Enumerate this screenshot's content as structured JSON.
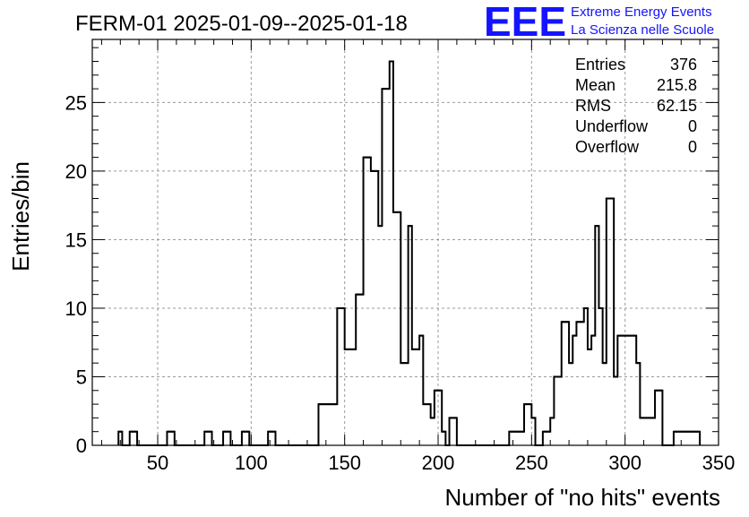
{
  "title": "FERM-01 2025-01-09--2025-01-18",
  "logo": {
    "text": "EEE",
    "color": "#1414ff",
    "line1": "Extreme Energy Events",
    "line2": "La Scienza nelle Scuole"
  },
  "stats": [
    {
      "label": "Entries",
      "value": "376"
    },
    {
      "label": "Mean",
      "value": "215.8"
    },
    {
      "label": "RMS",
      "value": "62.15"
    },
    {
      "label": "Underflow",
      "value": "0"
    },
    {
      "label": "Overflow",
      "value": "0"
    }
  ],
  "chart_data": {
    "type": "histogram",
    "xlabel": "Number of \"no hits\" events",
    "ylabel": "Entries/bin",
    "xlim": [
      15,
      350
    ],
    "ylim": [
      0,
      29.6
    ],
    "bin_width": 4,
    "grid": true,
    "xticks": [
      50,
      100,
      150,
      200,
      250,
      300,
      350
    ],
    "yticks": [
      0,
      5,
      10,
      15,
      20,
      25
    ],
    "bins": [
      {
        "x": 29,
        "y": 1
      },
      {
        "x": 31,
        "y": 0
      },
      {
        "x": 35,
        "y": 1
      },
      {
        "x": 39,
        "y": 0
      },
      {
        "x": 55,
        "y": 1
      },
      {
        "x": 59,
        "y": 0
      },
      {
        "x": 75,
        "y": 1
      },
      {
        "x": 79,
        "y": 0
      },
      {
        "x": 85,
        "y": 1
      },
      {
        "x": 89,
        "y": 0
      },
      {
        "x": 95,
        "y": 1
      },
      {
        "x": 99,
        "y": 0
      },
      {
        "x": 109,
        "y": 1
      },
      {
        "x": 113,
        "y": 0
      },
      {
        "x": 136,
        "y": 3
      },
      {
        "x": 146,
        "y": 10
      },
      {
        "x": 150,
        "y": 7
      },
      {
        "x": 156,
        "y": 11
      },
      {
        "x": 160,
        "y": 21
      },
      {
        "x": 164,
        "y": 20
      },
      {
        "x": 168,
        "y": 16
      },
      {
        "x": 170,
        "y": 26
      },
      {
        "x": 174,
        "y": 28
      },
      {
        "x": 176,
        "y": 17
      },
      {
        "x": 180,
        "y": 6
      },
      {
        "x": 184,
        "y": 16
      },
      {
        "x": 186,
        "y": 7
      },
      {
        "x": 190,
        "y": 8
      },
      {
        "x": 192,
        "y": 3
      },
      {
        "x": 196,
        "y": 2
      },
      {
        "x": 198,
        "y": 4
      },
      {
        "x": 202,
        "y": 1
      },
      {
        "x": 204,
        "y": 0
      },
      {
        "x": 206,
        "y": 2
      },
      {
        "x": 210,
        "y": 0
      },
      {
        "x": 238,
        "y": 1
      },
      {
        "x": 246,
        "y": 3
      },
      {
        "x": 250,
        "y": 2
      },
      {
        "x": 252,
        "y": 0
      },
      {
        "x": 256,
        "y": 1
      },
      {
        "x": 260,
        "y": 2
      },
      {
        "x": 262,
        "y": 5
      },
      {
        "x": 266,
        "y": 9
      },
      {
        "x": 270,
        "y": 6
      },
      {
        "x": 272,
        "y": 8
      },
      {
        "x": 274,
        "y": 9
      },
      {
        "x": 278,
        "y": 10
      },
      {
        "x": 280,
        "y": 7
      },
      {
        "x": 282,
        "y": 8
      },
      {
        "x": 284,
        "y": 16
      },
      {
        "x": 286,
        "y": 10
      },
      {
        "x": 288,
        "y": 6
      },
      {
        "x": 290,
        "y": 18
      },
      {
        "x": 294,
        "y": 5
      },
      {
        "x": 296,
        "y": 8
      },
      {
        "x": 306,
        "y": 6
      },
      {
        "x": 308,
        "y": 2
      },
      {
        "x": 316,
        "y": 4
      },
      {
        "x": 320,
        "y": 0
      },
      {
        "x": 326,
        "y": 1
      },
      {
        "x": 340,
        "y": 0
      }
    ]
  }
}
